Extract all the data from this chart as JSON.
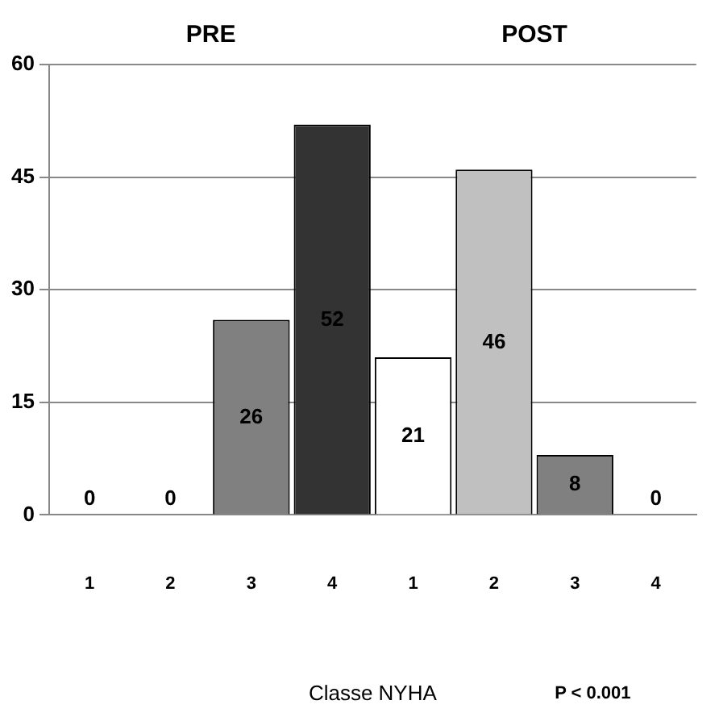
{
  "chart_data": {
    "type": "bar",
    "categories": [
      "1",
      "2",
      "3",
      "4",
      "1",
      "2",
      "3",
      "4"
    ],
    "values": [
      0,
      0,
      26,
      52,
      21,
      46,
      8,
      0
    ],
    "colors": [
      "#ffffff",
      "#c0c0c0",
      "#808080",
      "#333333",
      "#ffffff",
      "#c0c0c0",
      "#808080",
      "#333333"
    ],
    "ylim": [
      0,
      60
    ],
    "yticks": [
      0,
      15,
      30,
      45,
      60
    ],
    "grid": "y",
    "data_labels": true,
    "legend": false,
    "xlabel": "Classe NYHA",
    "annotations": [
      "PRE",
      "POST",
      "P < 0.001"
    ]
  }
}
